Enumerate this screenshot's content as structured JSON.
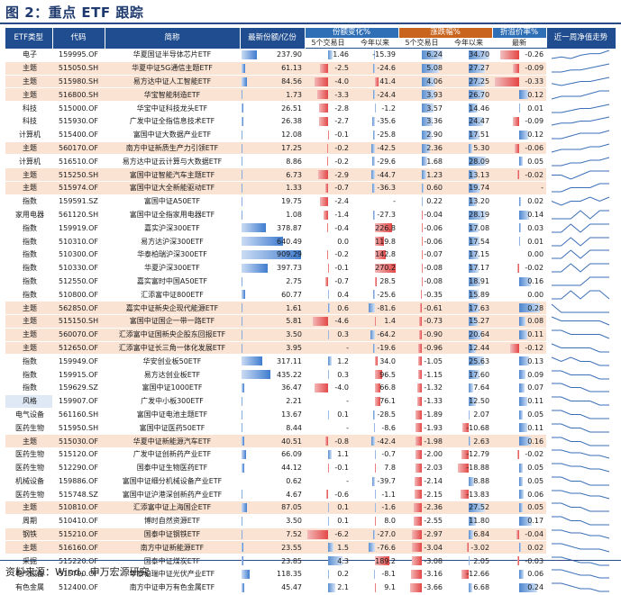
{
  "title": "图 2：重点 ETF 跟踪",
  "source": "资料来源：Wind，申万宏源研究",
  "headers": {
    "type": "ETF类型",
    "code": "代码",
    "name": "简称",
    "shares": "最新份额/亿份",
    "share_change_group": "份额变化%",
    "return_group": "涨跌幅%",
    "premium_group": "折溢价率%",
    "trend": "近一周净值走势",
    "d5": "5个交易日",
    "ytd": "今年以来",
    "latest": "最新"
  },
  "colors": {
    "header_blue": "#1f4d8f",
    "header_orange": "#c8641e",
    "highlight_row": "#fbe3d3",
    "spark_line": "#3b6fb8"
  },
  "rows": [
    {
      "type": "电子",
      "code": "159995.OF",
      "name": "华夏国证半导体芯片ETF",
      "shares": "237.90",
      "sc5": "1.46",
      "scy": "-15.39",
      "r5": "6.24",
      "ry": "34.70",
      "prem": "-0.26",
      "hl": false,
      "v": [
        237.9,
        1.46,
        -15.39,
        6.24,
        34.7,
        -0.26
      ],
      "trend": [
        3,
        4,
        3,
        5,
        6,
        6,
        8
      ]
    },
    {
      "type": "主题",
      "code": "515050.SH",
      "name": "华夏中证5G通信主题ETF",
      "shares": "61.13",
      "sc5": "-2.5",
      "scy": "-24.6",
      "r5": "5.08",
      "ry": "27.27",
      "prem": "-0.09",
      "hl": true,
      "v": [
        61.13,
        -2.5,
        -24.6,
        5.08,
        27.27,
        -0.09
      ],
      "trend": [
        3,
        3,
        4,
        4,
        5,
        6,
        7
      ]
    },
    {
      "type": "主题",
      "code": "515980.SH",
      "name": "易方达中证人工智能ETF",
      "shares": "84.56",
      "sc5": "-4.0",
      "scy": "41.4",
      "r5": "4.06",
      "ry": "27.25",
      "prem": "-0.33",
      "hl": true,
      "v": [
        84.56,
        -4.0,
        41.4,
        4.06,
        27.25,
        -0.33
      ],
      "trend": [
        4,
        3,
        4,
        5,
        5,
        6,
        7
      ]
    },
    {
      "type": "主题",
      "code": "516800.SH",
      "name": "华宝智能制造ETF",
      "shares": "1.73",
      "sc5": "-3.3",
      "scy": "-24.4",
      "r5": "3.93",
      "ry": "26.70",
      "prem": "0.12",
      "hl": true,
      "v": [
        1.73,
        -3.3,
        -24.4,
        3.93,
        26.7,
        0.12
      ],
      "trend": [
        3,
        4,
        4,
        4,
        5,
        6,
        6
      ]
    },
    {
      "type": "科技",
      "code": "515000.OF",
      "name": "华宝中证科技龙头ETF",
      "shares": "26.51",
      "sc5": "-2.8",
      "scy": "-1.2",
      "r5": "3.57",
      "ry": "14.46",
      "prem": "0.01",
      "hl": false,
      "v": [
        26.51,
        -2.8,
        -1.2,
        3.57,
        14.46,
        0.01
      ],
      "trend": [
        3,
        3,
        4,
        5,
        5,
        6,
        7
      ]
    },
    {
      "type": "科技",
      "code": "515930.OF",
      "name": "广发中证全指信息技术ETF",
      "shares": "26.38",
      "sc5": "-2.7",
      "scy": "-35.6",
      "r5": "3.36",
      "ry": "24.47",
      "prem": "-0.09",
      "hl": false,
      "v": [
        26.38,
        -2.7,
        -35.6,
        3.36,
        24.47,
        -0.09
      ],
      "trend": [
        3,
        4,
        4,
        5,
        5,
        6,
        7
      ]
    },
    {
      "type": "计算机",
      "code": "515400.OF",
      "name": "富国中证大数据产业ETF",
      "shares": "12.08",
      "sc5": "-0.1",
      "scy": "-25.8",
      "r5": "2.90",
      "ry": "17.51",
      "prem": "0.12",
      "hl": false,
      "v": [
        12.08,
        -0.1,
        -25.8,
        2.9,
        17.51,
        0.12
      ],
      "trend": [
        3,
        3,
        4,
        5,
        5,
        5,
        6
      ]
    },
    {
      "type": "主题",
      "code": "560170.OF",
      "name": "南方中证新质生产力引领ETF",
      "shares": "17.25",
      "sc5": "-0.2",
      "scy": "-42.5",
      "r5": "2.36",
      "ry": "5.30",
      "prem": "-0.06",
      "hl": true,
      "v": [
        17.25,
        -0.2,
        -42.5,
        2.36,
        5.3,
        -0.06
      ],
      "trend": [
        3,
        4,
        4,
        4,
        5,
        5,
        6
      ]
    },
    {
      "type": "计算机",
      "code": "516510.OF",
      "name": "易方达中证云计算与大数据ETF",
      "shares": "8.86",
      "sc5": "-0.2",
      "scy": "-29.6",
      "r5": "1.68",
      "ry": "28.09",
      "prem": "0.05",
      "hl": false,
      "v": [
        8.86,
        -0.2,
        -29.6,
        1.68,
        28.09,
        0.05
      ],
      "trend": [
        3,
        3,
        4,
        4,
        5,
        5,
        6
      ]
    },
    {
      "type": "主题",
      "code": "515250.SH",
      "name": "富国中证智能汽车主题ETF",
      "shares": "6.73",
      "sc5": "-2.9",
      "scy": "-44.7",
      "r5": "1.23",
      "ry": "13.13",
      "prem": "-0.02",
      "hl": true,
      "v": [
        6.73,
        -2.9,
        -44.7,
        1.23,
        13.13,
        -0.02
      ],
      "trend": [
        4,
        4,
        3,
        4,
        5,
        5,
        5
      ]
    },
    {
      "type": "主题",
      "code": "515974.OF",
      "name": "富国中证大全新能驱动ETF",
      "shares": "1.33",
      "sc5": "-0.7",
      "scy": "-36.3",
      "r5": "0.60",
      "ry": "19.74",
      "prem": "-",
      "hl": true,
      "v": [
        1.33,
        -0.7,
        -36.3,
        0.6,
        19.74,
        0
      ],
      "trend": [
        3,
        3,
        4,
        4,
        4,
        5,
        5
      ]
    },
    {
      "type": "指数",
      "code": "159591.SZ",
      "name": "富国中证A50ETF",
      "shares": "19.75",
      "sc5": "-2.4",
      "scy": "-",
      "r5": "0.22",
      "ry": "13.20",
      "prem": "0.02",
      "hl": false,
      "v": [
        19.75,
        -2.4,
        0,
        0.22,
        13.2,
        0.02
      ],
      "trend": [
        4,
        3,
        4,
        4,
        5,
        4,
        5
      ]
    },
    {
      "type": "家用电器",
      "code": "561120.SH",
      "name": "富国中证全指家用电器ETF",
      "shares": "1.08",
      "sc5": "-1.4",
      "scy": "-27.3",
      "r5": "-0.04",
      "ry": "28.19",
      "prem": "0.14",
      "hl": false,
      "v": [
        1.08,
        -1.4,
        -27.3,
        -0.04,
        28.19,
        0.14
      ],
      "trend": [
        4,
        4,
        4,
        5,
        4,
        5,
        5
      ]
    },
    {
      "type": "指数",
      "code": "159919.OF",
      "name": "嘉实沪深300ETF",
      "shares": "378.87",
      "sc5": "-0.4",
      "scy": "226.8",
      "r5": "-0.06",
      "ry": "17.08",
      "prem": "0.03",
      "hl": false,
      "v": [
        378.87,
        -0.4,
        226.8,
        -0.06,
        17.08,
        0.03
      ],
      "trend": [
        4,
        4,
        5,
        4,
        5,
        5,
        5
      ]
    },
    {
      "type": "指数",
      "code": "510310.OF",
      "name": "易方达沪深300ETF",
      "shares": "640.49",
      "sc5": "0.0",
      "scy": "119.8",
      "r5": "-0.06",
      "ry": "17.54",
      "prem": "0.01",
      "hl": false,
      "v": [
        640.49,
        0.0,
        119.8,
        -0.06,
        17.54,
        0.01
      ],
      "trend": [
        4,
        4,
        5,
        4,
        5,
        5,
        5
      ]
    },
    {
      "type": "指数",
      "code": "510300.OF",
      "name": "华泰柏瑞沪深300ETF",
      "shares": "909.29",
      "sc5": "-0.2",
      "scy": "142.8",
      "r5": "-0.07",
      "ry": "17.15",
      "prem": "0.00",
      "hl": false,
      "v": [
        909.29,
        -0.2,
        142.8,
        -0.07,
        17.15,
        0.0
      ],
      "trend": [
        4,
        4,
        5,
        4,
        5,
        5,
        5
      ]
    },
    {
      "type": "指数",
      "code": "510330.OF",
      "name": "华夏沪深300ETF",
      "shares": "397.73",
      "sc5": "-0.1",
      "scy": "270.2",
      "r5": "-0.08",
      "ry": "17.17",
      "prem": "-0.02",
      "hl": false,
      "v": [
        397.73,
        -0.1,
        270.2,
        -0.08,
        17.17,
        -0.02
      ],
      "trend": [
        4,
        4,
        5,
        4,
        5,
        5,
        5
      ]
    },
    {
      "type": "指数",
      "code": "512550.OF",
      "name": "嘉实富时中国A50ETF",
      "shares": "2.75",
      "sc5": "-0.7",
      "scy": "28.5",
      "r5": "-0.08",
      "ry": "18.91",
      "prem": "0.16",
      "hl": false,
      "v": [
        2.75,
        -0.7,
        28.5,
        -0.08,
        18.91,
        0.16
      ],
      "trend": [
        4,
        4,
        4,
        4,
        5,
        5,
        5
      ]
    },
    {
      "type": "指数",
      "code": "510800.OF",
      "name": "汇添富中证800ETF",
      "shares": "60.77",
      "sc5": "0.4",
      "scy": "-25.6",
      "r5": "-0.35",
      "ry": "15.89",
      "prem": "0.00",
      "hl": false,
      "v": [
        60.77,
        0.4,
        -25.6,
        -0.35,
        15.89,
        0.0
      ],
      "trend": [
        4,
        4,
        5,
        4,
        5,
        5,
        4
      ]
    },
    {
      "type": "主题",
      "code": "562850.OF",
      "name": "嘉实中证新央企现代能源ETF",
      "shares": "1.61",
      "sc5": "0.6",
      "scy": "-81.6",
      "r5": "-0.61",
      "ry": "17.63",
      "prem": "0.28",
      "hl": true,
      "v": [
        1.61,
        0.6,
        -81.6,
        -0.61,
        17.63,
        0.28
      ],
      "trend": [
        5,
        4,
        4,
        4,
        4,
        4,
        4
      ]
    },
    {
      "type": "主题",
      "code": "515150.SH",
      "name": "富国中证国企一带一路ETF",
      "shares": "5.81",
      "sc5": "-4.6",
      "scy": "1.4",
      "r5": "-0.73",
      "ry": "15.27",
      "prem": "0.08",
      "hl": true,
      "v": [
        5.81,
        -4.6,
        1.4,
        -0.73,
        15.27,
        0.08
      ],
      "trend": [
        5,
        4,
        4,
        4,
        4,
        4,
        3
      ]
    },
    {
      "type": "主题",
      "code": "560070.OF",
      "name": "汇添富中证国新央企股东回报ETF",
      "shares": "3.50",
      "sc5": "0.3",
      "scy": "-64.2",
      "r5": "-0.90",
      "ry": "20.64",
      "prem": "0.11",
      "hl": true,
      "v": [
        3.5,
        0.3,
        -64.2,
        -0.9,
        20.64,
        0.11
      ],
      "trend": [
        5,
        5,
        4,
        4,
        4,
        4,
        3
      ]
    },
    {
      "type": "主题",
      "code": "512650.OF",
      "name": "汇添富中证长三角一体化发展ETF",
      "shares": "3.95",
      "sc5": "-",
      "scy": "-19.6",
      "r5": "-0.96",
      "ry": "12.44",
      "prem": "-0.12",
      "hl": true,
      "v": [
        3.95,
        0,
        -19.6,
        -0.96,
        12.44,
        -0.12
      ],
      "trend": [
        5,
        4,
        4,
        4,
        4,
        3,
        3
      ]
    },
    {
      "type": "指数",
      "code": "159949.OF",
      "name": "华安创业板50ETF",
      "shares": "317.11",
      "sc5": "1.2",
      "scy": "34.0",
      "r5": "-1.05",
      "ry": "25.63",
      "prem": "0.13",
      "hl": false,
      "v": [
        317.11,
        1.2,
        34.0,
        -1.05,
        25.63,
        0.13
      ],
      "trend": [
        5,
        4,
        5,
        4,
        4,
        3,
        3
      ]
    },
    {
      "type": "指数",
      "code": "159915.OF",
      "name": "易方达创业板ETF",
      "shares": "435.22",
      "sc5": "0.3",
      "scy": "96.5",
      "r5": "-1.15",
      "ry": "17.60",
      "prem": "0.09",
      "hl": false,
      "v": [
        435.22,
        0.3,
        96.5,
        -1.15,
        17.6,
        0.09
      ],
      "trend": [
        5,
        5,
        4,
        4,
        4,
        3,
        3
      ]
    },
    {
      "type": "指数",
      "code": "159629.SZ",
      "name": "富国中证1000ETF",
      "shares": "36.47",
      "sc5": "-4.0",
      "scy": "66.8",
      "r5": "-1.32",
      "ry": "7.64",
      "prem": "0.07",
      "hl": false,
      "v": [
        36.47,
        -4.0,
        66.8,
        -1.32,
        7.64,
        0.07
      ],
      "trend": [
        5,
        5,
        4,
        4,
        3,
        3,
        3
      ]
    },
    {
      "type": "风格",
      "code": "159907.OF",
      "name": "广发中小板300ETF",
      "shares": "2.21",
      "sc5": "-",
      "scy": "76.1",
      "r5": "-1.33",
      "ry": "12.50",
      "prem": "0.11",
      "hl": false,
      "blue": true,
      "v": [
        2.21,
        0,
        76.1,
        -1.33,
        12.5,
        0.11
      ],
      "trend": [
        5,
        5,
        4,
        4,
        4,
        3,
        3
      ]
    },
    {
      "type": "电气设备",
      "code": "561160.SH",
      "name": "富国中证电池主题ETF",
      "shares": "13.67",
      "sc5": "0.1",
      "scy": "-28.5",
      "r5": "-1.89",
      "ry": "2.07",
      "prem": "0.05",
      "hl": false,
      "v": [
        13.67,
        0.1,
        -28.5,
        -1.89,
        2.07,
        0.05
      ],
      "trend": [
        5,
        5,
        4,
        4,
        3,
        3,
        3
      ]
    },
    {
      "type": "医药生物",
      "code": "515950.SH",
      "name": "富国中证医药50ETF",
      "shares": "8.44",
      "sc5": "-",
      "scy": "-8.6",
      "r5": "-1.93",
      "ry": "-10.68",
      "prem": "0.11",
      "hl": false,
      "v": [
        8.44,
        0,
        -8.6,
        -1.93,
        -10.68,
        0.11
      ],
      "trend": [
        5,
        5,
        4,
        4,
        3,
        3,
        3
      ]
    },
    {
      "type": "主题",
      "code": "515030.OF",
      "name": "华夏中证新能源汽车ETF",
      "shares": "40.51",
      "sc5": "-0.8",
      "scy": "-42.4",
      "r5": "-1.98",
      "ry": "2.63",
      "prem": "0.16",
      "hl": true,
      "v": [
        40.51,
        -0.8,
        -42.4,
        -1.98,
        2.63,
        0.16
      ],
      "trend": [
        5,
        5,
        4,
        4,
        3,
        3,
        3
      ]
    },
    {
      "type": "医药生物",
      "code": "515120.OF",
      "name": "广发中证创新药产业ETF",
      "shares": "66.09",
      "sc5": "1.1",
      "scy": "-0.7",
      "r5": "-2.00",
      "ry": "-12.79",
      "prem": "-0.02",
      "hl": false,
      "v": [
        66.09,
        1.1,
        -0.7,
        -2.0,
        -12.79,
        -0.02
      ],
      "trend": [
        5,
        5,
        4,
        4,
        3,
        3,
        2
      ]
    },
    {
      "type": "医药生物",
      "code": "512290.OF",
      "name": "国泰中证生物医药ETF",
      "shares": "44.12",
      "sc5": "-0.1",
      "scy": "7.8",
      "r5": "-2.03",
      "ry": "-18.88",
      "prem": "0.05",
      "hl": false,
      "v": [
        44.12,
        -0.1,
        7.8,
        -2.03,
        -18.88,
        0.05
      ],
      "trend": [
        5,
        5,
        4,
        4,
        3,
        3,
        2
      ]
    },
    {
      "type": "机械设备",
      "code": "159886.OF",
      "name": "富国中证细分机械设备产业ETF",
      "shares": "0.62",
      "sc5": "-",
      "scy": "-39.7",
      "r5": "-2.14",
      "ry": "8.88",
      "prem": "0.05",
      "hl": false,
      "v": [
        0.62,
        0,
        -39.7,
        -2.14,
        8.88,
        0.05
      ],
      "trend": [
        5,
        5,
        4,
        4,
        3,
        3,
        3
      ]
    },
    {
      "type": "医药生物",
      "code": "515748.SZ",
      "name": "富国中证沪港深创新药产业ETF",
      "shares": "4.67",
      "sc5": "-0.6",
      "scy": "-1.1",
      "r5": "-2.15",
      "ry": "-13.83",
      "prem": "0.06",
      "hl": false,
      "v": [
        4.67,
        -0.6,
        -1.1,
        -2.15,
        -13.83,
        0.06
      ],
      "trend": [
        5,
        5,
        4,
        4,
        3,
        3,
        2
      ]
    },
    {
      "type": "主题",
      "code": "510810.OF",
      "name": "汇添富中证上海国企ETF",
      "shares": "87.05",
      "sc5": "0.1",
      "scy": "-1.6",
      "r5": "-2.36",
      "ry": "27.52",
      "prem": "0.05",
      "hl": true,
      "v": [
        87.05,
        0.1,
        -1.6,
        -2.36,
        27.52,
        0.05
      ],
      "trend": [
        5,
        5,
        4,
        4,
        3,
        3,
        3
      ]
    },
    {
      "type": "周期",
      "code": "510410.OF",
      "name": "博时自然资源ETF",
      "shares": "3.50",
      "sc5": "0.1",
      "scy": "8.0",
      "r5": "-2.55",
      "ry": "11.80",
      "prem": "0.17",
      "hl": false,
      "v": [
        3.5,
        0.1,
        8.0,
        -2.55,
        11.8,
        0.17
      ],
      "trend": [
        5,
        5,
        4,
        4,
        3,
        3,
        3
      ]
    },
    {
      "type": "钢铁",
      "code": "515210.OF",
      "name": "国泰中证钢铁ETF",
      "shares": "7.52",
      "sc5": "-6.2",
      "scy": "-27.0",
      "r5": "-2.97",
      "ry": "6.84",
      "prem": "-0.04",
      "hl": true,
      "v": [
        7.52,
        -6.2,
        -27.0,
        -2.97,
        6.84,
        -0.04
      ],
      "trend": [
        5,
        5,
        4,
        4,
        3,
        3,
        2
      ]
    },
    {
      "type": "主题",
      "code": "516160.OF",
      "name": "南方中证新能源ETF",
      "shares": "23.55",
      "sc5": "1.5",
      "scy": "-76.6",
      "r5": "-3.04",
      "ry": "-3.02",
      "prem": "0.02",
      "hl": true,
      "v": [
        23.55,
        1.5,
        -76.6,
        -3.04,
        -3.02,
        0.02
      ],
      "trend": [
        5,
        5,
        4,
        3,
        3,
        3,
        2
      ]
    },
    {
      "type": "采掘",
      "code": "515220.OF",
      "name": "国泰中证煤炭ETF",
      "shares": "23.85",
      "sc5": "4.3",
      "scy": "189.2",
      "r5": "-3.08",
      "ry": "2.05",
      "prem": "-0.03",
      "hl": false,
      "v": [
        23.85,
        4.3,
        189.2,
        -3.08,
        2.05,
        -0.03
      ],
      "trend": [
        5,
        5,
        4,
        3,
        3,
        2,
        2
      ]
    },
    {
      "type": "电气设备",
      "code": "515790.OF",
      "name": "华泰柏瑞中证光伏产业ETF",
      "shares": "118.35",
      "sc5": "0.2",
      "scy": "-8.1",
      "r5": "-3.16",
      "ry": "-12.66",
      "prem": "0.06",
      "hl": false,
      "v": [
        118.35,
        0.2,
        -8.1,
        -3.16,
        -12.66,
        0.06
      ],
      "trend": [
        5,
        5,
        4,
        3,
        3,
        2,
        2
      ]
    },
    {
      "type": "有色金属",
      "code": "512400.OF",
      "name": "南方中证申万有色金属ETF",
      "shares": "45.47",
      "sc5": "2.1",
      "scy": "9.1",
      "r5": "-3.66",
      "ry": "6.68",
      "prem": "0.24",
      "hl": false,
      "v": [
        45.47,
        2.1,
        9.1,
        -3.66,
        6.68,
        0.24
      ],
      "trend": [
        5,
        5,
        4,
        3,
        3,
        2,
        2
      ]
    }
  ]
}
